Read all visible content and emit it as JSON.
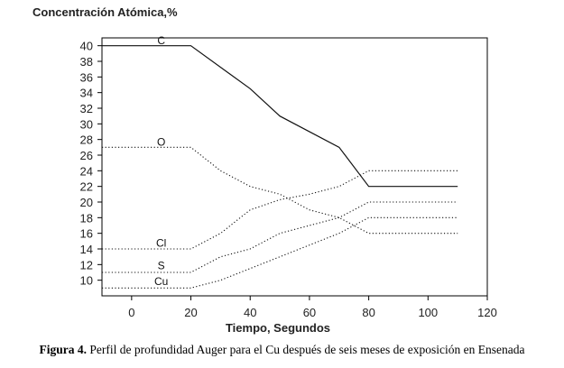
{
  "chart_data": {
    "type": "line",
    "title": "",
    "ylabel": "Concentración Atómica,%",
    "xlabel": "Tiempo, Segundos",
    "xlim": [
      -10,
      120
    ],
    "ylim": [
      8,
      41
    ],
    "xticks": [
      0,
      20,
      40,
      60,
      80,
      100,
      120
    ],
    "yticks": [
      10,
      12,
      14,
      16,
      18,
      20,
      22,
      24,
      26,
      28,
      30,
      32,
      34,
      36,
      38,
      40
    ],
    "grid": false,
    "legend": "none",
    "series": [
      {
        "name": "C",
        "style": "solid",
        "label_at": [
          10,
          40.3
        ],
        "points": [
          [
            -10,
            40
          ],
          [
            20,
            40
          ],
          [
            40,
            34.5
          ],
          [
            50,
            31
          ],
          [
            70,
            27
          ],
          [
            80,
            22
          ],
          [
            110,
            22
          ]
        ]
      },
      {
        "name": "O",
        "style": "dotted",
        "label_at": [
          10,
          27.3
        ],
        "points": [
          [
            -10,
            27
          ],
          [
            20,
            27
          ],
          [
            30,
            24
          ],
          [
            40,
            22
          ],
          [
            50,
            21
          ],
          [
            60,
            19
          ],
          [
            70,
            18
          ],
          [
            80,
            16
          ],
          [
            110,
            16
          ]
        ]
      },
      {
        "name": "Cl",
        "style": "dotted",
        "label_at": [
          10,
          14.4
        ],
        "points": [
          [
            -10,
            14
          ],
          [
            20,
            14
          ],
          [
            30,
            16
          ],
          [
            40,
            19
          ],
          [
            50,
            20.3
          ],
          [
            60,
            21
          ],
          [
            70,
            22
          ],
          [
            80,
            24
          ],
          [
            110,
            24
          ]
        ]
      },
      {
        "name": "S",
        "style": "dotted",
        "label_at": [
          10,
          11.5
        ],
        "points": [
          [
            -10,
            11
          ],
          [
            20,
            11
          ],
          [
            30,
            13
          ],
          [
            40,
            14
          ],
          [
            50,
            16
          ],
          [
            60,
            17
          ],
          [
            70,
            18
          ],
          [
            80,
            20
          ],
          [
            110,
            20
          ]
        ]
      },
      {
        "name": "Cu",
        "style": "dotted",
        "label_at": [
          10,
          9.5
        ],
        "points": [
          [
            -10,
            9
          ],
          [
            20,
            9
          ],
          [
            30,
            10
          ],
          [
            40,
            11.5
          ],
          [
            50,
            13
          ],
          [
            60,
            14.5
          ],
          [
            70,
            16
          ],
          [
            80,
            18
          ],
          [
            110,
            18
          ]
        ]
      }
    ]
  },
  "caption": {
    "label": "Figura 4.",
    "text": "Perfil de profundidad Auger para el Cu después de seis meses de exposición en Ensenada"
  }
}
